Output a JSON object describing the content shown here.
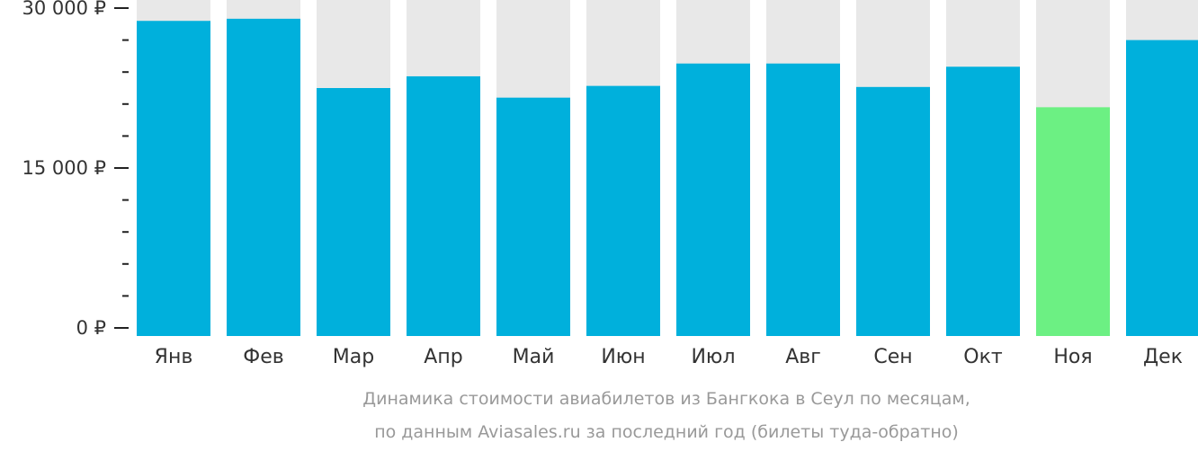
{
  "chart_data": {
    "type": "bar",
    "title": "Динамика стоимости авиабилетов из Бангкока в Сеул по месяцам,",
    "subtitle": "по данным Aviasales.ru за последний год (билеты туда-обратно)",
    "categories": [
      "Янв",
      "Фев",
      "Мар",
      "Апр",
      "Май",
      "Июн",
      "Июл",
      "Авг",
      "Сен",
      "Окт",
      "Ноя",
      "Дек"
    ],
    "values": [
      28800,
      29000,
      22500,
      23600,
      21600,
      22700,
      24800,
      24800,
      22600,
      24500,
      20700,
      27000
    ],
    "highlight_index": 10,
    "ylim": [
      0,
      30000
    ],
    "yticks": [
      0,
      15000,
      30000
    ],
    "ytick_labels": [
      "0 ₽",
      "15 000 ₽",
      "30 000 ₽"
    ],
    "minor_tick_step": 3000,
    "xlabel": "",
    "ylabel": "",
    "colors": {
      "bar": "#00b0dc",
      "highlight": "#6cf083",
      "background": "#e8e8e8"
    }
  }
}
